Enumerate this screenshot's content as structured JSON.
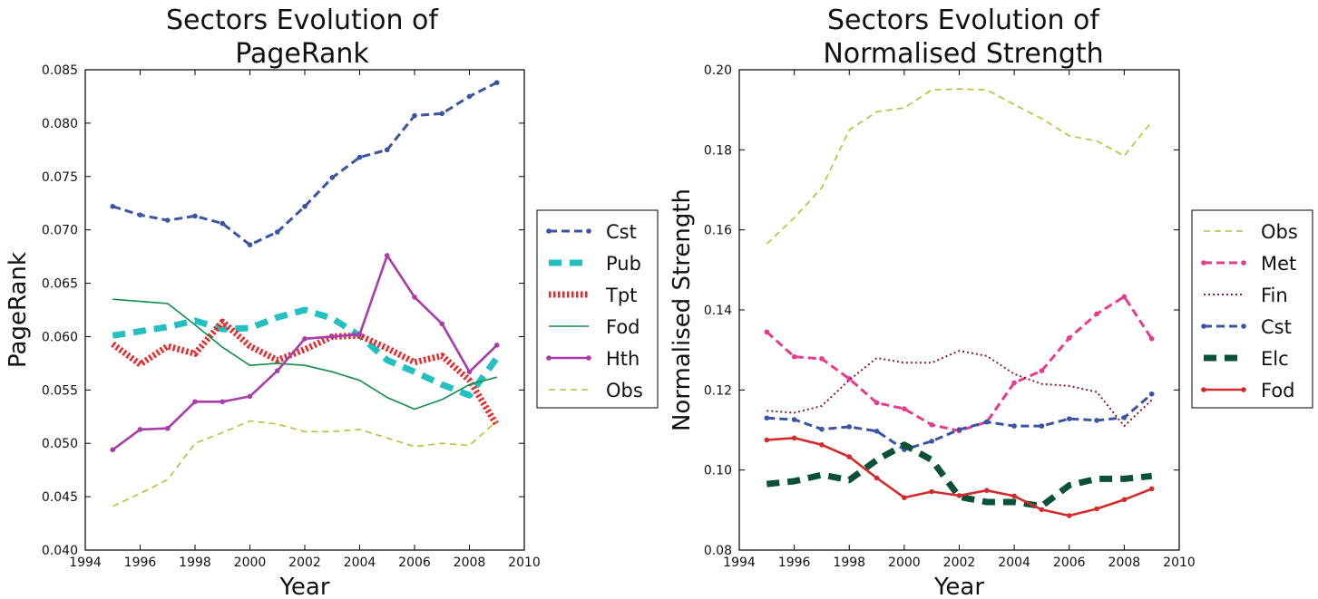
{
  "chart_data": [
    {
      "type": "line",
      "title": [
        "Sectors Evolution of",
        "PageRank"
      ],
      "xlabel": "Year",
      "ylabel": "PageRank",
      "xlim": [
        1994,
        2010
      ],
      "ylim": [
        0.04,
        0.085
      ],
      "xticks": [
        "1994",
        "1996",
        "1998",
        "2000",
        "2002",
        "2004",
        "2006",
        "2008",
        "2010"
      ],
      "yticks": [
        "0.040",
        "0.045",
        "0.050",
        "0.055",
        "0.060",
        "0.065",
        "0.070",
        "0.075",
        "0.080",
        "0.085"
      ],
      "grid": false,
      "legend": "right, outside plot",
      "x": [
        1995,
        1996,
        1997,
        1998,
        1999,
        2000,
        2001,
        2002,
        2003,
        2004,
        2005,
        2006,
        2007,
        2008,
        2009
      ],
      "series": [
        {
          "name": "Cst",
          "color": "#3a53a4",
          "style": "dashed-dots",
          "values": [
            0.0722,
            0.0714,
            0.0709,
            0.0713,
            0.0706,
            0.0686,
            0.0698,
            0.0722,
            0.0749,
            0.0768,
            0.0775,
            0.0807,
            0.0809,
            0.0825,
            0.0838
          ]
        },
        {
          "name": "Pub",
          "color": "#22c0c0",
          "style": "thick-dashed",
          "values": [
            0.0601,
            0.0605,
            0.0609,
            0.0615,
            0.0607,
            0.0608,
            0.0618,
            0.0625,
            0.0617,
            0.0601,
            0.0578,
            0.0567,
            0.0555,
            0.0545,
            0.058
          ]
        },
        {
          "name": "Tpt",
          "color": "#e8292c",
          "style": "thick-dotted",
          "values": [
            0.0593,
            0.0574,
            0.0591,
            0.0584,
            0.0614,
            0.0591,
            0.0578,
            0.0588,
            0.06,
            0.0601,
            0.0589,
            0.0576,
            0.0582,
            0.0559,
            0.0517
          ]
        },
        {
          "name": "Fod",
          "color": "#138d4c",
          "style": "solid",
          "values": [
            0.0635,
            0.0633,
            0.0631,
            0.0611,
            0.059,
            0.0573,
            0.0575,
            0.0573,
            0.0567,
            0.0559,
            0.0543,
            0.0532,
            0.0541,
            0.0555,
            0.0562
          ]
        },
        {
          "name": " Hth",
          "color": "#a83ca8",
          "style": "solid-dots",
          "values": [
            0.0494,
            0.0513,
            0.0514,
            0.0539,
            0.0539,
            0.0544,
            0.0568,
            0.0598,
            0.06,
            0.0602,
            0.0676,
            0.0637,
            0.0612,
            0.0567,
            0.0592
          ]
        },
        {
          "name": "Obs",
          "color": "#bcbd3a",
          "style": "dashed",
          "values": [
            0.0441,
            0.0453,
            0.0466,
            0.05,
            0.051,
            0.0521,
            0.0518,
            0.0511,
            0.0511,
            0.0513,
            0.0505,
            0.0497,
            0.05,
            0.0498,
            0.0521
          ]
        }
      ]
    },
    {
      "type": "line",
      "title": [
        "Sectors Evolution of",
        "Normalised Strength"
      ],
      "xlabel": "Year",
      "ylabel": "Normalised Strength",
      "xlim": [
        1994,
        2010
      ],
      "ylim": [
        0.08,
        0.2
      ],
      "xticks": [
        "1994",
        "1996",
        "1998",
        "2000",
        "2002",
        "2004",
        "2006",
        "2008",
        "2010"
      ],
      "yticks": [
        "0.08",
        "0.10",
        "0.12",
        "0.14",
        "0.16",
        "0.18",
        "0.20"
      ],
      "grid": false,
      "legend": "right, outside plot",
      "x": [
        1995,
        1996,
        1997,
        1998,
        1999,
        2000,
        2001,
        2002,
        2003,
        2004,
        2005,
        2006,
        2007,
        2008,
        2009
      ],
      "series": [
        {
          "name": "Obs",
          "color": "#bcbd3a",
          "style": "dashed",
          "values": [
            0.1565,
            0.163,
            0.1705,
            0.185,
            0.1895,
            0.1905,
            0.195,
            0.1952,
            0.195,
            0.1913,
            0.1878,
            0.1835,
            0.1822,
            0.1785,
            0.187
          ]
        },
        {
          "name": "Met",
          "color": "#e83a8c",
          "style": "dashed-dots",
          "values": [
            0.1345,
            0.1283,
            0.1278,
            0.1228,
            0.1168,
            0.1153,
            0.1113,
            0.1098,
            0.112,
            0.1218,
            0.1248,
            0.133,
            0.139,
            0.1433,
            0.1328
          ]
        },
        {
          "name": "Fin",
          "color": "#8a1a3e",
          "style": "dotted",
          "values": [
            0.1148,
            0.1143,
            0.116,
            0.1225,
            0.128,
            0.1268,
            0.1268,
            0.1298,
            0.1285,
            0.124,
            0.1215,
            0.121,
            0.1195,
            0.111,
            0.1175
          ]
        },
        {
          "name": "Cst",
          "color": "#3a53a4",
          "style": "dashed-dots",
          "values": [
            0.113,
            0.1126,
            0.1102,
            0.1108,
            0.1097,
            0.1051,
            0.1072,
            0.1101,
            0.112,
            0.111,
            0.111,
            0.1128,
            0.1124,
            0.1131,
            0.119
          ]
        },
        {
          "name": "Elc",
          "color": "#0a5138",
          "style": "thick-dashed",
          "values": [
            0.0965,
            0.0972,
            0.0988,
            0.0975,
            0.1025,
            0.1063,
            0.1025,
            0.0933,
            0.092,
            0.092,
            0.091,
            0.0962,
            0.0978,
            0.0978,
            0.0985
          ]
        },
        {
          "name": "Fod",
          "color": "#d42a2a",
          "style": "solid-dots",
          "values": [
            0.1075,
            0.108,
            0.1063,
            0.1033,
            0.098,
            0.0931,
            0.0946,
            0.0936,
            0.0949,
            0.0935,
            0.0901,
            0.0886,
            0.0903,
            0.0926,
            0.0953
          ]
        }
      ]
    }
  ]
}
